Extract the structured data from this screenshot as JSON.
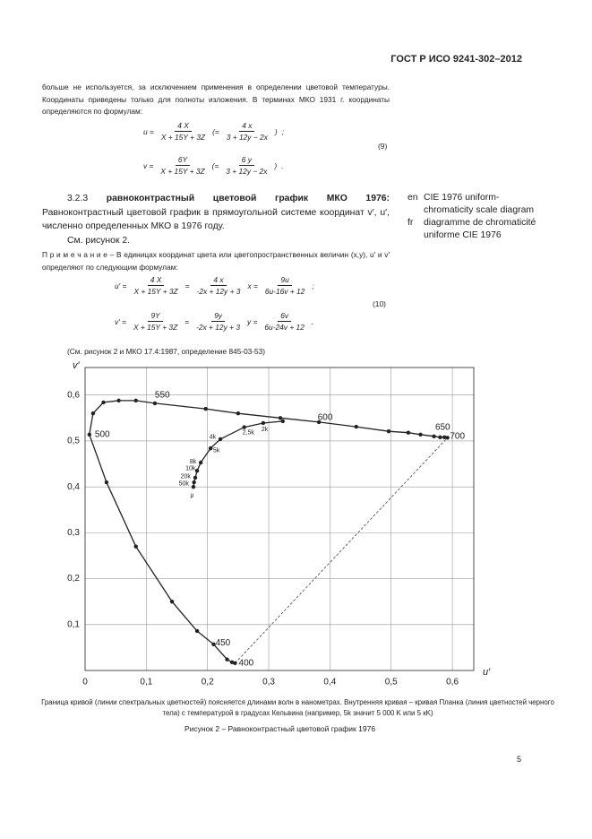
{
  "header": {
    "title": "ГОСТ Р ИСО 9241-302–2012"
  },
  "intro": "больше не используется, за исключением применения в определении цветовой температуры. Координаты приведены только для полноты изложения. В терминах МКО 1931 г. координаты определяются по формулам:",
  "formula9": {
    "number": "(9)",
    "rows": [
      {
        "lhs": "u =",
        "terms": [
          {
            "num": "4 X",
            "den": "X + 15Y + 3Z"
          },
          {
            "text": "(="
          },
          {
            "num": "4 x",
            "den": "3 + 12y − 2x"
          },
          {
            "text": ")"
          },
          {
            "text": ";"
          }
        ]
      },
      {
        "lhs": "v =",
        "terms": [
          {
            "num": "6Y",
            "den": "X + 15Y + 3Z"
          },
          {
            "text": "(="
          },
          {
            "num": "6 y",
            "den": "3 + 12y − 2x"
          },
          {
            "text": ")"
          },
          {
            "text": "."
          }
        ]
      }
    ]
  },
  "section": {
    "number": "3.2.3",
    "term": "равноконтрастный цветовой график МКО 1976:",
    "text": "Равноконтрастный цветовой график в прямоугольной системе координат v′, u′, численно определенных МКО в 1976 году.",
    "see": "См. рисунок 2."
  },
  "equivalents": [
    {
      "lang": "en",
      "text": "CIE 1976 uniform-chromaticity scale diagram"
    },
    {
      "lang": "fr",
      "text": "diagramme de chromaticité uniforme CIE 1976"
    }
  ],
  "note": "П р и м е ч а н и е – В единицах координат цвета или цветопространственных величин (x,y), u′ и v′ определяют по следующим формулам:",
  "formula10": {
    "number": "(10)",
    "rows": [
      {
        "lhs": "u′ =",
        "terms": [
          {
            "num": "4 X",
            "den": "X + 15Y + 3Z"
          },
          {
            "text": "="
          },
          {
            "num": "4 x",
            "den": "-2x + 12y + 3"
          },
          {
            "text": "x ="
          },
          {
            "num": "9u",
            "den": "6u-16v + 12"
          },
          {
            "text": ";"
          }
        ]
      },
      {
        "lhs": "v′ =",
        "terms": [
          {
            "num": "9Y",
            "den": "X + 15Y + 3Z"
          },
          {
            "text": "="
          },
          {
            "num": "9y",
            "den": "-2x + 12y + 3"
          },
          {
            "text": "y ="
          },
          {
            "num": "6v",
            "den": "6u-24v + 12"
          },
          {
            "text": "."
          }
        ]
      }
    ]
  },
  "reference": "(См. рисунок 2 и МКО 17.4:1987, определение 845-03-53)",
  "chart_data": {
    "type": "line",
    "xlabel": "u′",
    "ylabel": "v′",
    "xlim": [
      0,
      0.635
    ],
    "ylim": [
      0,
      0.66
    ],
    "xticks": [
      0,
      {
        "value": 0.1,
        "label": "0,1"
      },
      {
        "value": 0.2,
        "label": "0,2"
      },
      {
        "value": 0.3,
        "label": "0,3"
      },
      {
        "value": 0.4,
        "label": "0,4"
      },
      {
        "value": 0.5,
        "label": "0,5"
      },
      {
        "value": 0.6,
        "label": "0,6"
      }
    ],
    "yticks": [
      {
        "value": 0.1,
        "label": "0,1"
      },
      {
        "value": 0.2,
        "label": "0,2"
      },
      {
        "value": 0.3,
        "label": "0,3"
      },
      {
        "value": 0.4,
        "label": "0,4"
      },
      {
        "value": 0.5,
        "label": "0,5"
      },
      {
        "value": 0.6,
        "label": "0,6"
      }
    ],
    "grid": true,
    "series": [
      {
        "color": "#222222",
        "x": [
          0.245,
          0.24,
          0.232,
          0.21,
          0.183,
          0.142,
          0.083,
          0.035,
          0.007,
          0.013,
          0.03,
          0.055,
          0.083,
          0.114,
          0.197,
          0.25,
          0.319,
          0.382,
          0.443,
          0.496,
          0.528,
          0.548,
          0.57,
          0.58,
          0.587,
          0.592
        ],
        "values": [
          0.016,
          0.018,
          0.024,
          0.057,
          0.086,
          0.15,
          0.27,
          0.41,
          0.514,
          0.56,
          0.584,
          0.588,
          0.588,
          0.582,
          0.57,
          0.56,
          0.55,
          0.541,
          0.531,
          0.521,
          0.518,
          0.514,
          0.51,
          0.508,
          0.508,
          0.507
        ]
      },
      {
        "color": "#222222",
        "x": [
          0.177,
          0.178,
          0.18,
          0.183,
          0.189,
          0.205,
          0.221,
          0.26,
          0.291,
          0.323
        ],
        "values": [
          0.4,
          0.41,
          0.42,
          0.435,
          0.453,
          0.484,
          0.504,
          0.53,
          0.539,
          0.543
        ]
      }
    ],
    "spectral_labels": [
      {
        "text": "550",
        "x": 0.114,
        "y": 0.6
      },
      {
        "text": "600",
        "x": 0.38,
        "y": 0.551
      },
      {
        "text": "650",
        "x": 0.572,
        "y": 0.529
      },
      {
        "text": "700",
        "x": 0.596,
        "y": 0.51
      },
      {
        "text": "500",
        "x": 0.016,
        "y": 0.514
      },
      {
        "text": "450",
        "x": 0.213,
        "y": 0.06
      },
      {
        "text": "400",
        "x": 0.251,
        "y": 0.016
      }
    ],
    "planck_labels": [
      {
        "text": "4k",
        "x": 0.203,
        "y": 0.508
      },
      {
        "text": "5k",
        "x": 0.209,
        "y": 0.479
      },
      {
        "text": "8k",
        "x": 0.171,
        "y": 0.455
      },
      {
        "text": "10k",
        "x": 0.164,
        "y": 0.44
      },
      {
        "text": "20k",
        "x": 0.156,
        "y": 0.422
      },
      {
        "text": "50k",
        "x": 0.153,
        "y": 0.407
      },
      {
        "text": "μ",
        "x": 0.172,
        "y": 0.381
      },
      {
        "text": "2,5k",
        "x": 0.257,
        "y": 0.518
      },
      {
        "text": "2k",
        "x": 0.288,
        "y": 0.525
      }
    ]
  },
  "caption": "Граница кривой (линии спектральных цветностей) поясняется длинами волн в нанометрах. Внутренняя кривая – кривая Планка (линия цветностей черного тела) с температурой в градусах Кельвина (например, 5k значит 5 000 K или 5 кK)",
  "figure_title": "Рисунок 2 – Равноконтрастный цветовой график 1976",
  "page_number": "5"
}
